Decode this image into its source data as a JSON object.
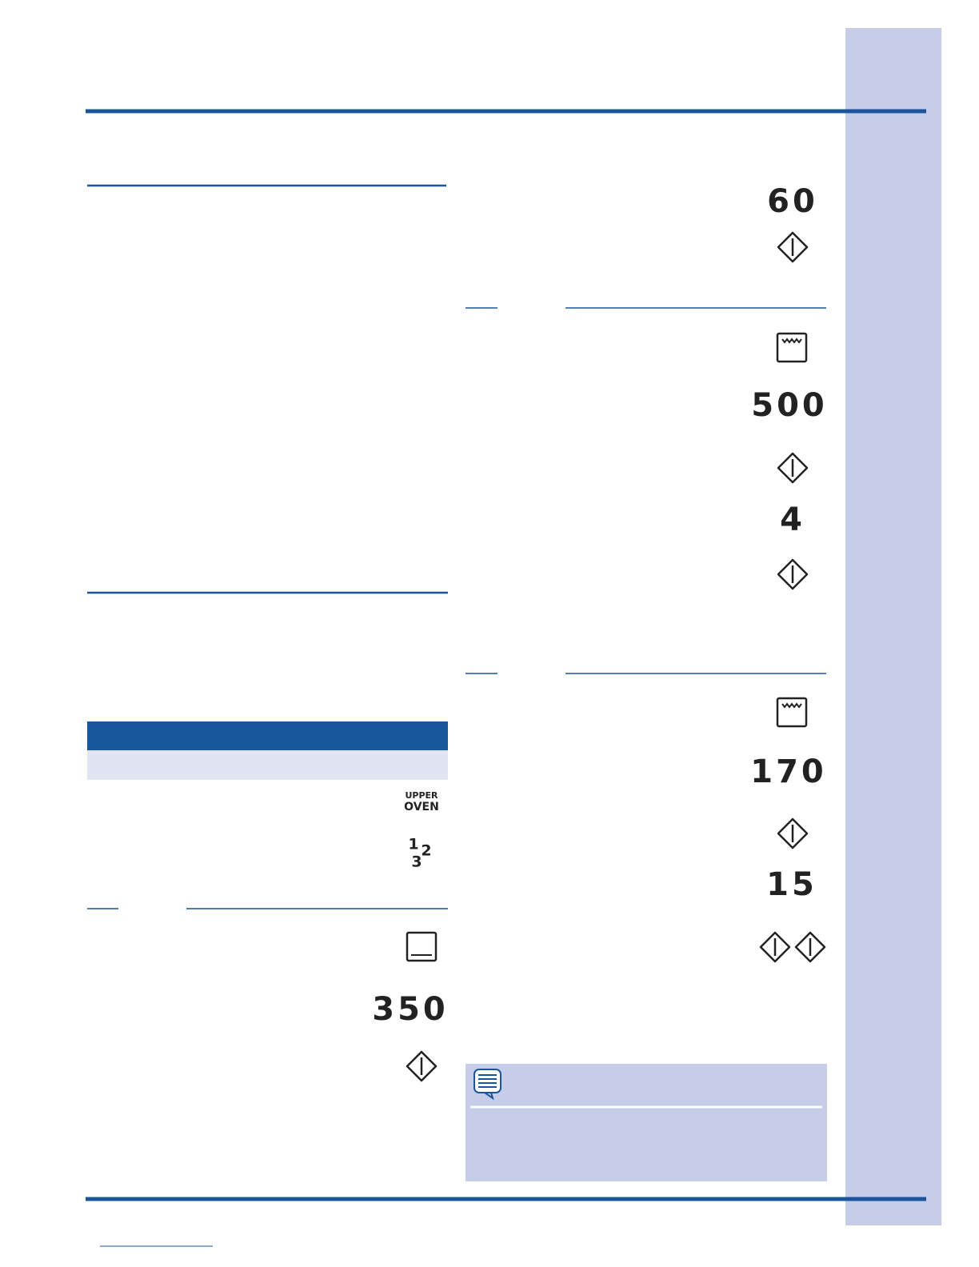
{
  "left_column": {
    "oven_label": [
      "UPPER",
      "OVEN"
    ],
    "rack_icon": [
      "1",
      "2",
      "3"
    ],
    "temperature": "350"
  },
  "right_column": {
    "step_1": {
      "value": "60"
    },
    "step_2": {
      "temperature": "500",
      "value": "4"
    },
    "step_3": {
      "temperature": "170",
      "value": "15"
    }
  }
}
